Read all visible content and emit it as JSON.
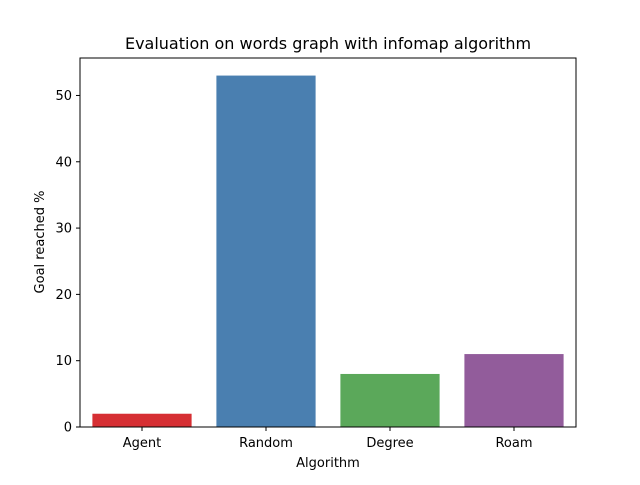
{
  "chart_data": {
    "type": "bar",
    "title": "Evaluation on words graph with infomap algorithm",
    "xlabel": "Algorithm",
    "ylabel": "Goal reached %",
    "categories": [
      "Agent",
      "Random",
      "Degree",
      "Roam"
    ],
    "values": [
      2,
      53,
      8,
      11
    ],
    "colors": [
      "#d62f33",
      "#4a7fb0",
      "#5ba85a",
      "#925c9b"
    ],
    "ylim": [
      0,
      55.65
    ],
    "yticks": [
      0,
      10,
      20,
      30,
      40,
      50
    ],
    "grid": false,
    "legend": "none"
  }
}
